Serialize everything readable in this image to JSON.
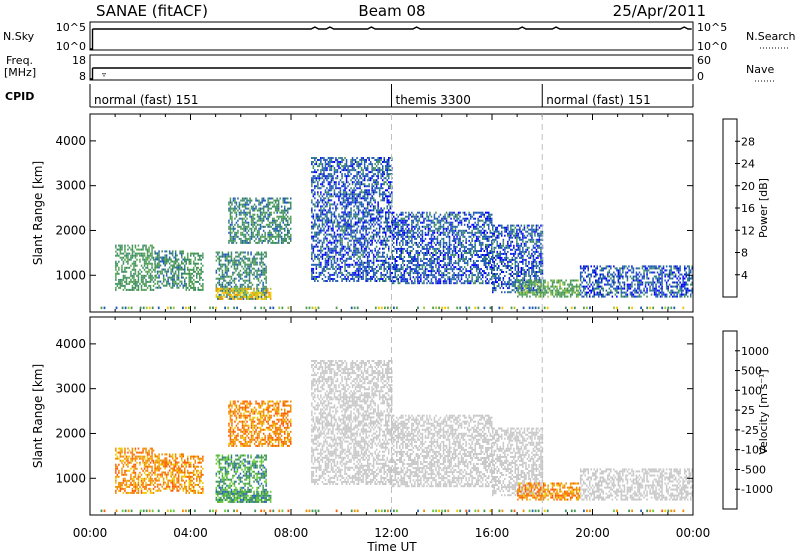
{
  "header": {
    "title_left": "SANAE (fitACF)",
    "title_center": "Beam 08",
    "title_right": "25/Apr/2011"
  },
  "strip_panels": {
    "nsky_label": "N.Sky",
    "nsky_ticks": [
      "10^5",
      "10^0"
    ],
    "nsearch_label": "N.Search",
    "nsearch_ticks": [
      "10^5",
      "10^0"
    ],
    "freq_label_1": "Freq.",
    "freq_label_2": "[MHz]",
    "freq_ticks": [
      "18",
      "8"
    ],
    "nave_label": "Nave",
    "nave_ticks": [
      "60",
      "0"
    ],
    "cpid_label": "CPID",
    "cpid_segments": [
      {
        "label": "normal (fast) 151",
        "start_hour": 0
      },
      {
        "label": "themis 3300",
        "start_hour": 12
      },
      {
        "label": "normal (fast) 151",
        "start_hour": 18
      }
    ]
  },
  "colors": {
    "power_scale": [
      "#0000ff",
      "#1f5ab4",
      "#3c8c64",
      "#50a050",
      "#a0c832",
      "#f0c800",
      "#f09600",
      "#f06400",
      "#e61e00"
    ],
    "velocity_scale": [
      "#ff0000",
      "#ff5a00",
      "#f08c00",
      "#f0c800",
      "#c8c8c8",
      "#66cc33",
      "#3c9650",
      "#2864b4",
      "#1432c8"
    ],
    "ground_scatter": "#c8c8c8"
  },
  "chart_data": [
    {
      "type": "heatmap",
      "name_printed": "Power",
      "ylabel": "Slant Range [km]",
      "yticks": [
        1000,
        2000,
        3000,
        4000
      ],
      "ylim": [
        180,
        4600
      ],
      "xlim": [
        0,
        24
      ],
      "colorbar_label": "Power [dB]",
      "colorbar_ticks": [
        4,
        8,
        12,
        16,
        20,
        24,
        28
      ],
      "colorbar_range": [
        0,
        32
      ],
      "regions": [
        {
          "t": [
            1.0,
            2.6
          ],
          "r": [
            650,
            1650
          ],
          "level": 12
        },
        {
          "t": [
            2.6,
            3.8
          ],
          "r": [
            700,
            1550
          ],
          "level": 10
        },
        {
          "t": [
            3.8,
            4.5
          ],
          "r": [
            650,
            1500
          ],
          "level": 12
        },
        {
          "t": [
            5.0,
            7.0
          ],
          "r": [
            450,
            1500
          ],
          "level": 10
        },
        {
          "t": [
            5.0,
            7.2
          ],
          "r": [
            450,
            700
          ],
          "level": 22
        },
        {
          "t": [
            5.5,
            8.0
          ],
          "r": [
            1700,
            2700
          ],
          "level": 10
        },
        {
          "t": [
            8.8,
            12.0
          ],
          "r": [
            850,
            3600
          ],
          "level": 6
        },
        {
          "t": [
            12.0,
            16.0
          ],
          "r": [
            800,
            2400
          ],
          "level": 6
        },
        {
          "t": [
            16.0,
            18.0
          ],
          "r": [
            600,
            2100
          ],
          "level": 6
        },
        {
          "t": [
            17.0,
            19.5
          ],
          "r": [
            500,
            900
          ],
          "level": 14
        },
        {
          "t": [
            19.5,
            24.0
          ],
          "r": [
            500,
            1200
          ],
          "level": 6
        }
      ]
    },
    {
      "type": "heatmap",
      "name_printed": "Velocity",
      "ylabel": "Slant Range [km]",
      "xlabel": "Time UT",
      "xticks": [
        "00:00",
        "04:00",
        "08:00",
        "12:00",
        "16:00",
        "20:00",
        "00:00"
      ],
      "yticks": [
        1000,
        2000,
        3000,
        4000
      ],
      "ylim": [
        180,
        4600
      ],
      "xlim": [
        0,
        24
      ],
      "colorbar_label": "Velocity [m s⁻¹]",
      "colorbar_ticks": [
        "1000",
        "500",
        "100",
        "25",
        "-25",
        "-100",
        "-500",
        "-1000"
      ],
      "regions": [
        {
          "t": [
            1.0,
            4.5
          ],
          "r": [
            650,
            1650
          ],
          "category": "negative"
        },
        {
          "t": [
            5.0,
            7.2
          ],
          "r": [
            450,
            1500
          ],
          "category": "positive"
        },
        {
          "t": [
            5.5,
            8.0
          ],
          "r": [
            1700,
            2700
          ],
          "category": "negative"
        },
        {
          "t": [
            8.8,
            18.0
          ],
          "r": [
            700,
            3600
          ],
          "category": "ground_scatter"
        },
        {
          "t": [
            17.5,
            19.5
          ],
          "r": [
            450,
            900
          ],
          "category": "negative"
        },
        {
          "t": [
            19.5,
            24.0
          ],
          "r": [
            500,
            1200
          ],
          "category": "ground_scatter"
        }
      ]
    }
  ]
}
